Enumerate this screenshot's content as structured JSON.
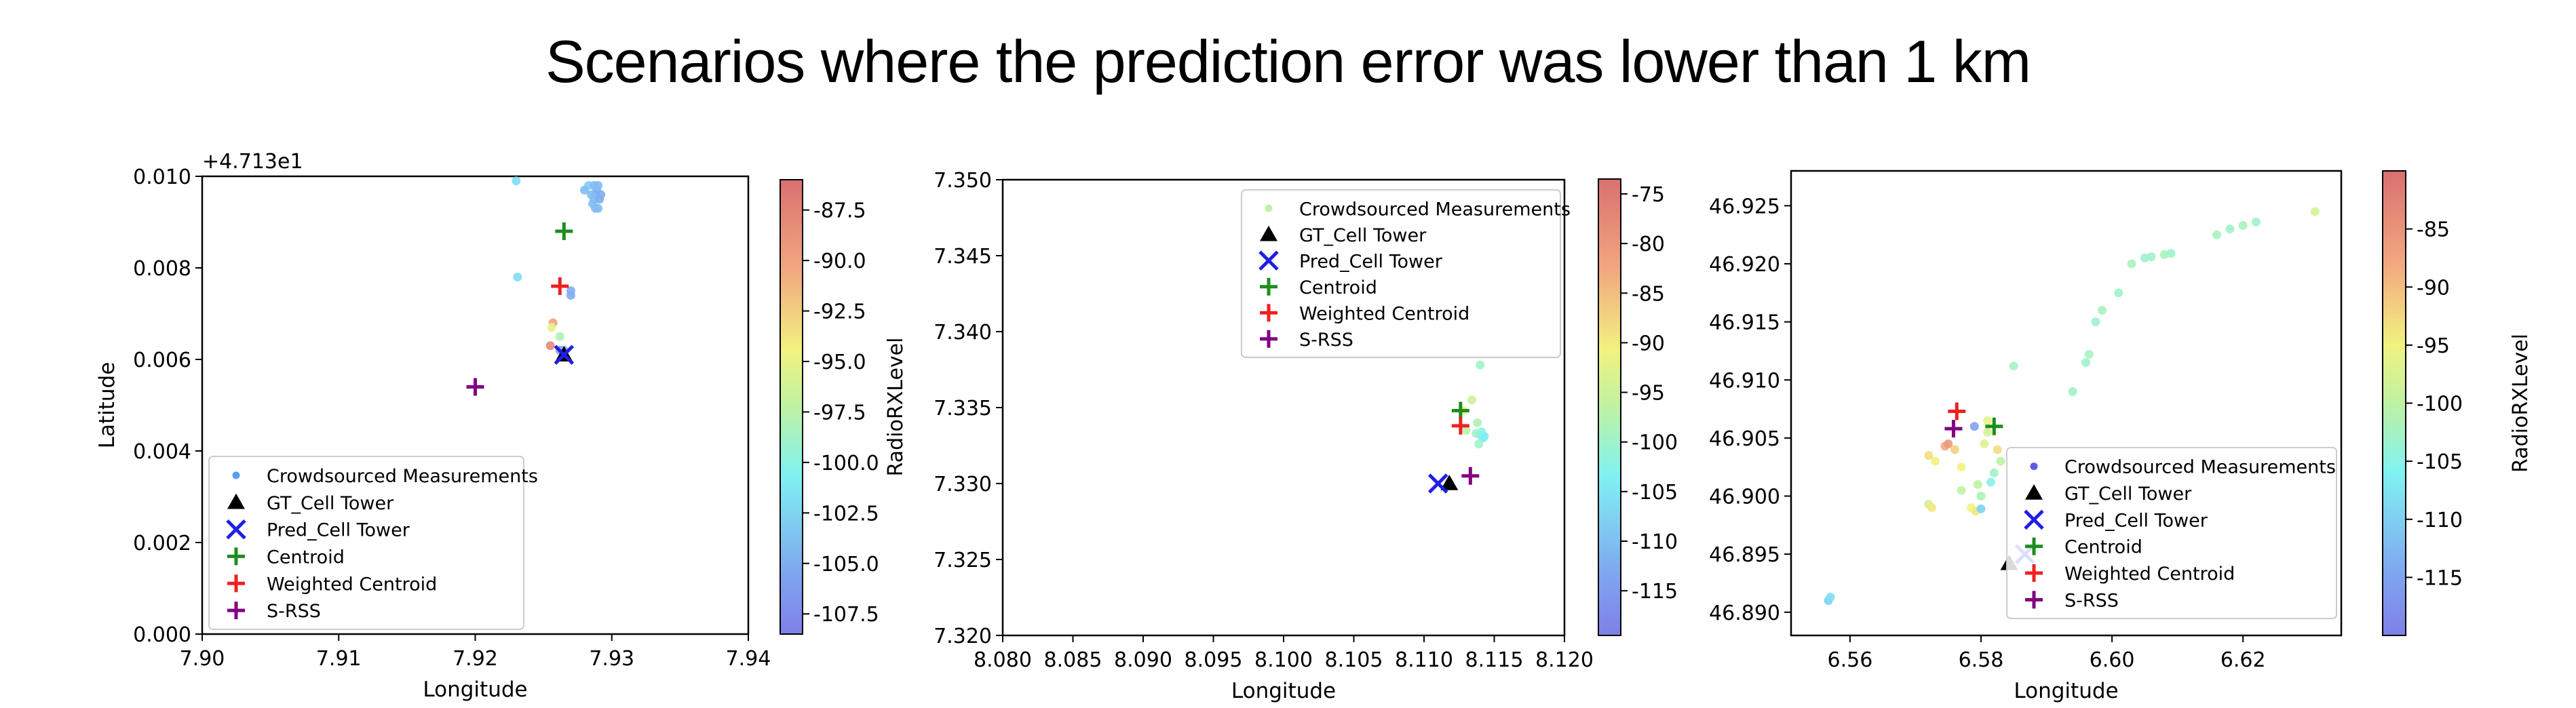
{
  "page_title": "Scenarios where the prediction error was  lower than 1 km",
  "legend_labels": [
    "Crowdsourced Measurements",
    "GT_Cell Tower",
    "Pred_Cell Tower",
    "Centroid",
    "Weighted Centroid",
    "S-RSS"
  ],
  "colors": {
    "gt": "#000000",
    "pred": "#1f1fe6",
    "centroid": "#1f8c1f",
    "weighted": "#f02020",
    "srss": "#800080"
  },
  "chart_data": [
    {
      "type": "scatter",
      "title": "",
      "xlabel": "Longitude",
      "ylabel": "Latitude",
      "offset_label": "+4.713e1",
      "xlim": [
        7.9,
        7.94
      ],
      "ylim": [
        0.0,
        0.01
      ],
      "x_ticks": [
        "7.90",
        "7.91",
        "7.92",
        "7.93",
        "7.94"
      ],
      "y_ticks": [
        "0.000",
        "0.002",
        "0.004",
        "0.006",
        "0.008",
        "0.010"
      ],
      "colorbar": {
        "label": "RadioRXLevel",
        "range": [
          -108.5,
          -86.0
        ],
        "ticks": [
          "-87.5",
          "-90.0",
          "-92.5",
          "-95.0",
          "-97.5",
          "-100.0",
          "-102.5",
          "-105.0",
          "-107.5"
        ]
      },
      "legend_position": "lower-left",
      "series": [
        {
          "name": "Crowdsourced Measurements",
          "points": [
            [
              7.927,
              0.0074
            ],
            [
              7.927,
              0.0075
            ],
            [
              7.923,
              0.0099
            ],
            [
              7.9231,
              0.0078
            ],
            [
              7.9287,
              0.0095
            ],
            [
              7.9288,
              0.0096
            ],
            [
              7.9289,
              0.0097
            ],
            [
              7.929,
              0.0098
            ],
            [
              7.9286,
              0.0094
            ],
            [
              7.9291,
              0.0095
            ],
            [
              7.9288,
              0.0093
            ],
            [
              7.9285,
              0.0096
            ],
            [
              7.9283,
              0.0098
            ],
            [
              7.928,
              0.0097
            ],
            [
              7.929,
              0.0093
            ],
            [
              7.9292,
              0.0096
            ],
            [
              7.9287,
              0.0098
            ],
            [
              7.9262,
              0.0062
            ],
            [
              7.9265,
              0.0062
            ],
            [
              7.9257,
              0.0068
            ],
            [
              7.9256,
              0.0067
            ],
            [
              7.9255,
              0.0063
            ],
            [
              7.9262,
              0.0065
            ]
          ],
          "levels": [
            -105,
            -105,
            -102,
            -102,
            -104,
            -104,
            -105,
            -104,
            -104,
            -105,
            -104,
            -104,
            -103,
            -104,
            -104,
            -105,
            -104,
            -106,
            -105,
            -90,
            -95,
            -88,
            -98
          ]
        },
        {
          "name": "GT_Cell Tower",
          "point": [
            7.9265,
            0.0061
          ]
        },
        {
          "name": "Pred_Cell Tower",
          "point": [
            7.9265,
            0.0061
          ]
        },
        {
          "name": "Centroid",
          "point": [
            7.9265,
            0.0088
          ]
        },
        {
          "name": "Weighted Centroid",
          "point": [
            7.9262,
            0.0076
          ]
        },
        {
          "name": "S-RSS",
          "point": [
            7.92,
            0.0054
          ]
        }
      ]
    },
    {
      "type": "scatter",
      "title": "",
      "xlabel": "Longitude",
      "ylabel": "",
      "offset_label": "",
      "xlim": [
        8.08,
        8.12
      ],
      "ylim": [
        47.32,
        47.35
      ],
      "x_ticks": [
        "8.080",
        "8.085",
        "8.090",
        "8.095",
        "8.100",
        "8.105",
        "8.110",
        "8.115",
        "8.120"
      ],
      "y_ticks": [
        "47.320",
        "47.325",
        "47.330",
        "47.335",
        "47.340",
        "47.345",
        "47.350"
      ],
      "y_tick_display": [
        "7.320",
        "7.325",
        "7.330",
        "7.335",
        "7.340",
        "7.345",
        "7.350"
      ],
      "colorbar": {
        "label": "",
        "range": [
          -119.5,
          -73.5
        ],
        "ticks": [
          "-75",
          "-80",
          "-85",
          "-90",
          "-95",
          "-100",
          "-105",
          "-110",
          "-115"
        ]
      },
      "legend_position": "upper-right",
      "series": [
        {
          "name": "Crowdsourced Measurements",
          "points": [
            [
              8.114,
              47.3378
            ],
            [
              8.1134,
              47.3355
            ],
            [
              8.1138,
              47.334
            ],
            [
              8.114,
              47.3332
            ],
            [
              8.1142,
              47.333
            ],
            [
              8.1137,
              47.3333
            ],
            [
              8.113,
              47.3335
            ],
            [
              8.1141,
              47.3334
            ],
            [
              8.1143,
              47.3331
            ],
            [
              8.1128,
              47.3348
            ],
            [
              8.1139,
              47.3326
            ]
          ],
          "levels": [
            -100,
            -95,
            -98,
            -103,
            -104,
            -100,
            -97,
            -102,
            -104,
            -92,
            -100
          ]
        },
        {
          "name": "GT_Cell Tower",
          "point": [
            8.1118,
            47.33
          ]
        },
        {
          "name": "Pred_Cell Tower",
          "point": [
            8.111,
            47.33
          ]
        },
        {
          "name": "Centroid",
          "point": [
            8.1126,
            47.3348
          ]
        },
        {
          "name": "Weighted Centroid",
          "point": [
            8.1126,
            47.3338
          ]
        },
        {
          "name": "S-RSS",
          "point": [
            8.1133,
            47.3305
          ]
        }
      ]
    },
    {
      "type": "scatter",
      "title": "",
      "xlabel": "Longitude",
      "ylabel": "",
      "offset_label": "",
      "xlim": [
        6.551,
        6.635
      ],
      "ylim": [
        46.888,
        46.928
      ],
      "x_ticks": [
        "6.56",
        "6.58",
        "6.60",
        "6.62"
      ],
      "y_ticks": [
        "46.890",
        "46.895",
        "46.900",
        "46.905",
        "46.910",
        "46.915",
        "46.920",
        "46.925"
      ],
      "colorbar": {
        "label": "RadioRXLevel",
        "range": [
          -120,
          -80
        ],
        "ticks": [
          "-85",
          "-90",
          "-95",
          "-100",
          "-105",
          "-110",
          "-115"
        ]
      },
      "legend_position": "lower-right",
      "series": [
        {
          "name": "Crowdsourced Measurements",
          "points": [
            [
              6.5567,
              46.891
            ],
            [
              6.557,
              46.8913
            ],
            [
              6.572,
              46.9035
            ],
            [
              6.573,
              46.903
            ],
            [
              6.5745,
              46.9043
            ],
            [
              6.575,
              46.9045
            ],
            [
              6.576,
              46.904
            ],
            [
              6.577,
              46.9025
            ],
            [
              6.572,
              46.8993
            ],
            [
              6.5725,
              46.899
            ],
            [
              6.577,
              46.9005
            ],
            [
              6.5785,
              46.899
            ],
            [
              6.5792,
              46.8987
            ],
            [
              6.58,
              46.8989
            ],
            [
              6.579,
              46.906
            ],
            [
              6.581,
              46.9055
            ],
            [
              6.581,
              46.9065
            ],
            [
              6.5825,
              46.904
            ],
            [
              6.58,
              46.9
            ],
            [
              6.5815,
              46.9012
            ],
            [
              6.582,
              46.902
            ],
            [
              6.583,
              46.903
            ],
            [
              6.585,
              46.9112
            ],
            [
              6.594,
              46.909
            ],
            [
              6.596,
              46.9115
            ],
            [
              6.5965,
              46.9122
            ],
            [
              6.5975,
              46.915
            ],
            [
              6.5985,
              46.916
            ],
            [
              6.601,
              46.9175
            ],
            [
              6.603,
              46.92
            ],
            [
              6.605,
              46.9205
            ],
            [
              6.606,
              46.9206
            ],
            [
              6.608,
              46.9208
            ],
            [
              6.609,
              46.9209
            ],
            [
              6.616,
              46.9225
            ],
            [
              6.618,
              46.923
            ],
            [
              6.62,
              46.9233
            ],
            [
              6.622,
              46.9236
            ],
            [
              6.631,
              46.9245
            ],
            [
              6.5795,
              46.901
            ],
            [
              6.5805,
              46.9045
            ]
          ],
          "levels": [
            -110,
            -108,
            -93,
            -95,
            -88,
            -86,
            -92,
            -95,
            -98,
            -94,
            -100,
            -95,
            -94,
            -110,
            -115,
            -98,
            -96,
            -93,
            -102,
            -105,
            -103,
            -100,
            -102,
            -103,
            -103,
            -102,
            -103,
            -102,
            -103,
            -102,
            -103,
            -103,
            -102,
            -103,
            -102,
            -103,
            -102,
            -103,
            -98,
            -100,
            -97
          ]
        },
        {
          "name": "GT_Cell Tower",
          "point": [
            6.5843,
            46.8942
          ]
        },
        {
          "name": "Pred_Cell Tower",
          "point": [
            6.5867,
            46.895
          ]
        },
        {
          "name": "Centroid",
          "point": [
            6.582,
            46.906
          ]
        },
        {
          "name": "Weighted Centroid",
          "point": [
            6.5763,
            46.9073
          ]
        },
        {
          "name": "S-RSS",
          "point": [
            6.5758,
            46.9058
          ]
        }
      ]
    }
  ]
}
